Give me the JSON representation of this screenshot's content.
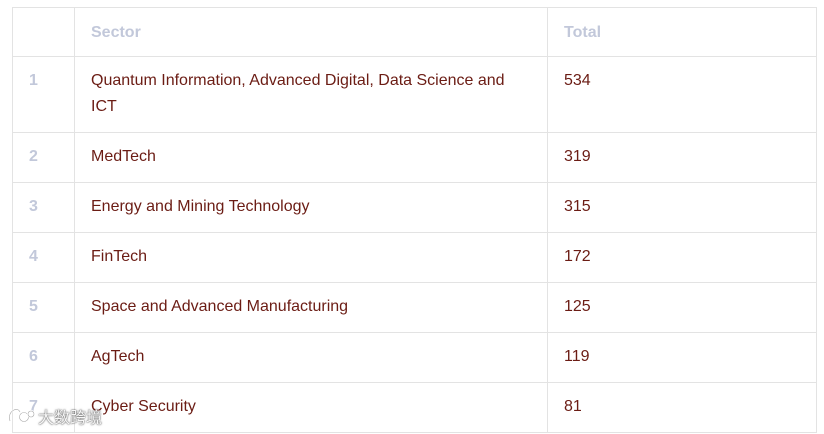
{
  "table": {
    "headers": {
      "index": "",
      "sector": "Sector",
      "total": "Total"
    },
    "rows": [
      {
        "index": "1",
        "sector": "Quantum Information, Advanced Digital, Data Science and ICT",
        "total": "534"
      },
      {
        "index": "2",
        "sector": "MedTech",
        "total": "319"
      },
      {
        "index": "3",
        "sector": "Energy and Mining Technology",
        "total": "315"
      },
      {
        "index": "4",
        "sector": "FinTech",
        "total": "172"
      },
      {
        "index": "5",
        "sector": "Space and Advanced Manufacturing",
        "total": "125"
      },
      {
        "index": "6",
        "sector": "AgTech",
        "total": "119"
      },
      {
        "index": "7",
        "sector": "Cyber Security",
        "total": "81"
      }
    ]
  },
  "watermark": {
    "text": "大数跨境"
  },
  "colors": {
    "header_text": "#c2c8da",
    "cell_text": "#6b1c14",
    "border": "#e3e3e3"
  }
}
